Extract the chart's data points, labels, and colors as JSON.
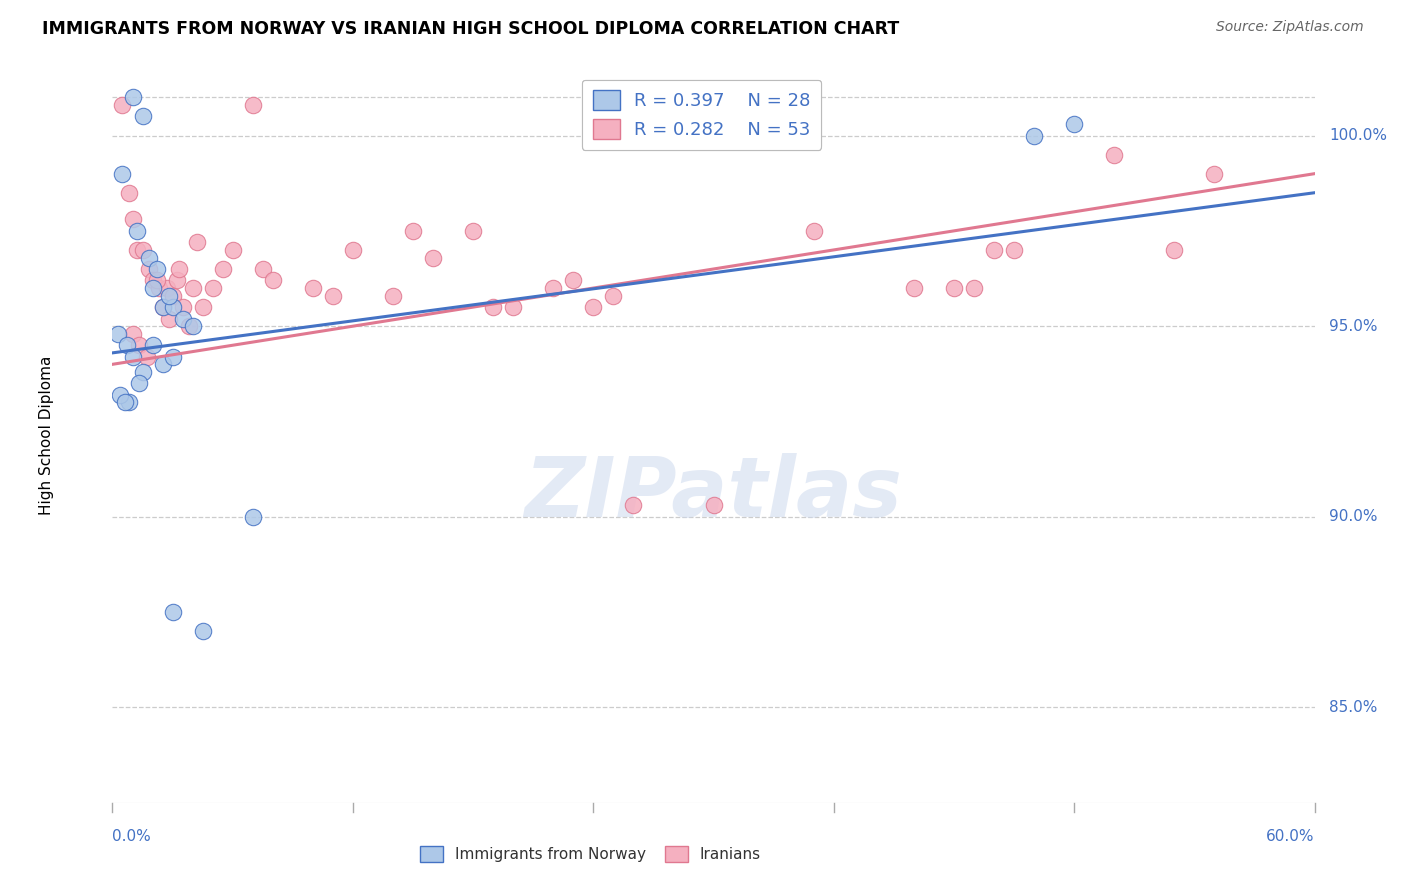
{
  "title": "IMMIGRANTS FROM NORWAY VS IRANIAN HIGH SCHOOL DIPLOMA CORRELATION CHART",
  "source": "Source: ZipAtlas.com",
  "ylabel": "High School Diploma",
  "ylabel_ticks": [
    85.0,
    90.0,
    95.0,
    100.0
  ],
  "ylabel_labels": [
    "85.0%",
    "90.0%",
    "95.0%",
    "100.0%"
  ],
  "xmin": 0.0,
  "xmax": 60.0,
  "ymin": 82.5,
  "ymax": 101.8,
  "norway_R": 0.397,
  "norway_N": 28,
  "iranian_R": 0.282,
  "iranian_N": 53,
  "norway_color": "#adc8e8",
  "iranian_color": "#f5b0c0",
  "norway_line_color": "#4472c4",
  "iranian_line_color": "#e07890",
  "watermark_text": "ZIPatlas",
  "norway_x": [
    1.0,
    1.5,
    2.0,
    2.5,
    3.0,
    0.5,
    1.2,
    1.8,
    2.2,
    2.8,
    3.5,
    4.0,
    0.3,
    0.7,
    1.0,
    1.5,
    2.0,
    2.5,
    3.0,
    0.8,
    1.3,
    0.4,
    0.6,
    7.0,
    3.0,
    4.5,
    46.0,
    48.0
  ],
  "norway_y": [
    101.0,
    100.5,
    96.0,
    95.5,
    95.5,
    99.0,
    97.5,
    96.8,
    96.5,
    95.8,
    95.2,
    95.0,
    94.8,
    94.5,
    94.2,
    93.8,
    94.5,
    94.0,
    94.2,
    93.0,
    93.5,
    93.2,
    93.0,
    90.0,
    87.5,
    87.0,
    100.0,
    100.3
  ],
  "iranian_x": [
    0.5,
    0.8,
    1.0,
    1.2,
    1.5,
    1.8,
    2.0,
    2.3,
    2.5,
    2.7,
    3.0,
    3.2,
    3.5,
    4.0,
    4.5,
    5.0,
    5.5,
    6.0,
    7.0,
    7.5,
    8.0,
    10.0,
    11.0,
    12.0,
    14.0,
    15.0,
    16.0,
    18.0,
    19.0,
    20.0,
    22.0,
    23.0,
    24.0,
    25.0,
    26.0,
    30.0,
    35.0,
    40.0,
    42.0,
    43.0,
    44.0,
    45.0,
    50.0,
    53.0,
    55.0,
    1.0,
    1.3,
    1.7,
    2.2,
    2.8,
    3.3,
    3.8,
    4.2
  ],
  "iranian_y": [
    100.8,
    98.5,
    97.8,
    97.0,
    97.0,
    96.5,
    96.2,
    96.0,
    95.5,
    96.0,
    95.8,
    96.2,
    95.5,
    96.0,
    95.5,
    96.0,
    96.5,
    97.0,
    100.8,
    96.5,
    96.2,
    96.0,
    95.8,
    97.0,
    95.8,
    97.5,
    96.8,
    97.5,
    95.5,
    95.5,
    96.0,
    96.2,
    95.5,
    95.8,
    90.3,
    90.3,
    97.5,
    96.0,
    96.0,
    96.0,
    97.0,
    97.0,
    99.5,
    97.0,
    99.0,
    94.8,
    94.5,
    94.2,
    96.2,
    95.2,
    96.5,
    95.0,
    97.2
  ]
}
